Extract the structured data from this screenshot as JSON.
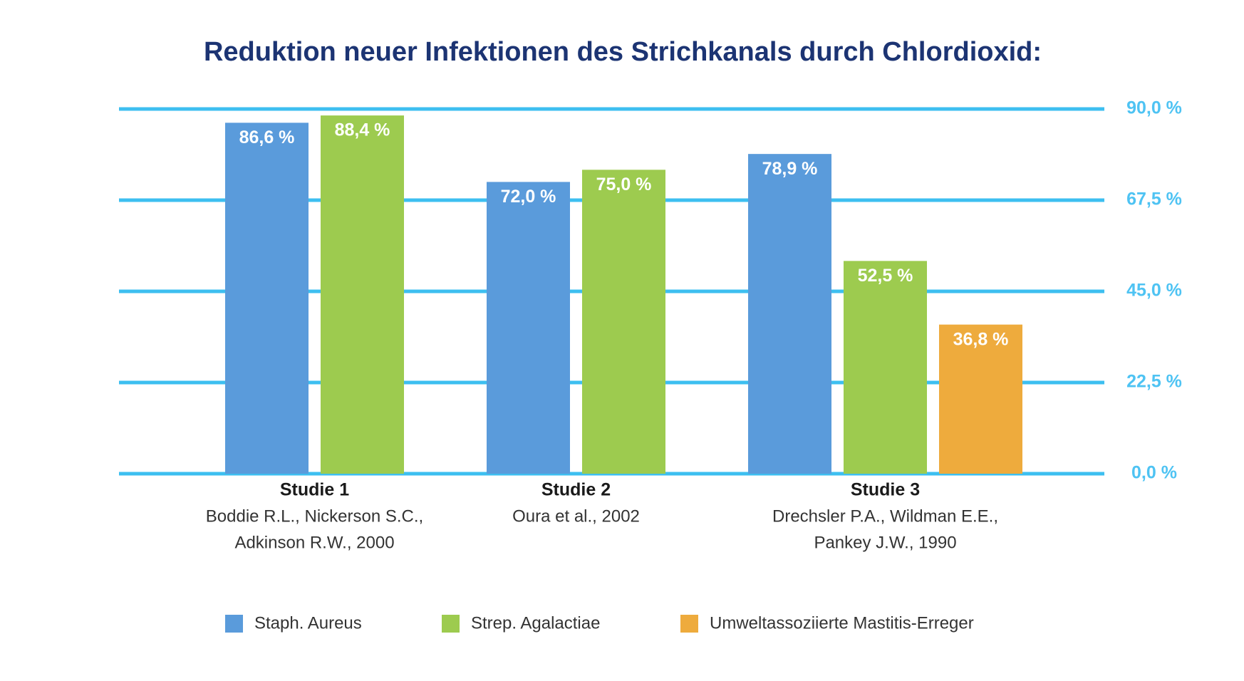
{
  "chart_data": {
    "type": "bar",
    "title": "Reduktion neuer Infektionen des Strichkanals durch Chlordioxid:",
    "categories": [
      "Studie 1",
      "Studie 2",
      "Studie 3"
    ],
    "category_notes": [
      [
        "Boddie R.L., Nickerson S.C.,",
        "Adkinson R.W., 2000"
      ],
      [
        "Oura et al., 2002"
      ],
      [
        "Drechsler P.A., Wildman E.E.,",
        "Pankey J.W., 1990"
      ]
    ],
    "series": [
      {
        "name": "Staph. Aureus",
        "color": "#5a9bdb",
        "values": [
          86.6,
          72.0,
          78.9
        ],
        "value_labels": [
          "86,6 %",
          "72,0 %",
          "78,9 %"
        ]
      },
      {
        "name": "Strep. Agalactiae",
        "color": "#9dcb4f",
        "values": [
          88.4,
          75.0,
          52.5
        ],
        "value_labels": [
          "88,4 %",
          "75,0 %",
          "52,5 %"
        ]
      },
      {
        "name": "Umweltassoziierte Mastitis-Erreger",
        "color": "#eeab3d",
        "values": [
          null,
          null,
          36.8
        ],
        "value_labels": [
          null,
          null,
          "36,8 %"
        ]
      }
    ],
    "ylim": [
      0,
      90
    ],
    "yticks": [
      {
        "value": 0,
        "label": "0,0 %"
      },
      {
        "value": 22.5,
        "label": "22,5 %"
      },
      {
        "value": 45,
        "label": "45,0 %"
      },
      {
        "value": 67.5,
        "label": "67,5 %"
      },
      {
        "value": 90,
        "label": "90,0 %"
      }
    ],
    "grid": true,
    "grid_color": "#3dbff0",
    "legend": "bottom"
  }
}
